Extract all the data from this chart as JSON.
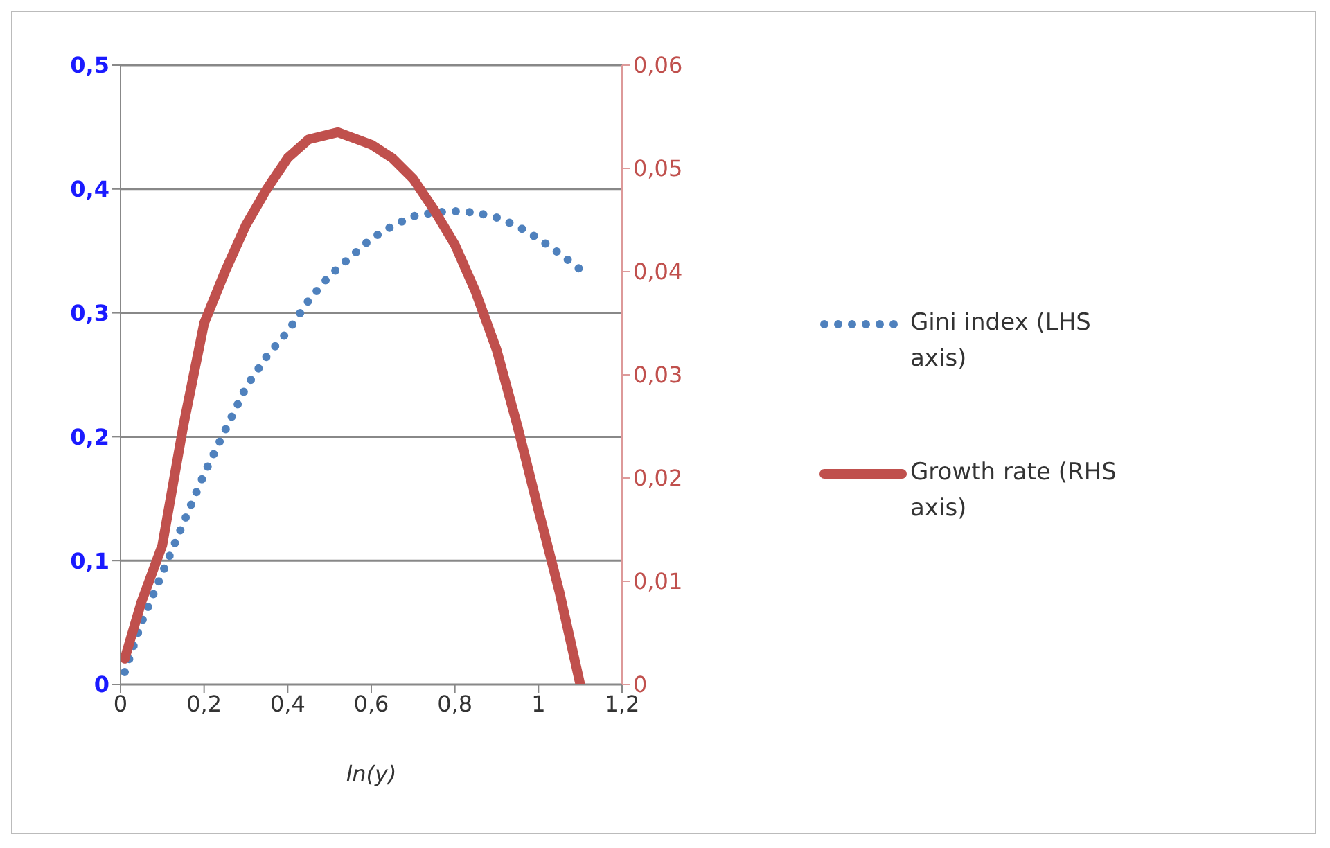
{
  "chart_data": {
    "type": "line",
    "xlabel": "ln(y)",
    "xlim": [
      0,
      1.2
    ],
    "xticks": [
      0,
      {
        "value": 0.2,
        "label": "0,2"
      },
      {
        "value": 0.4,
        "label": "0,4"
      },
      {
        "value": 0.6,
        "label": "0,6"
      },
      {
        "value": 0.8,
        "label": "0,8"
      },
      1,
      {
        "value": 1.2,
        "label": "1,2"
      }
    ],
    "ylim": [
      0,
      0.5
    ],
    "yticks": [
      0,
      {
        "value": 0.1,
        "label": "0,1"
      },
      {
        "value": 0.2,
        "label": "0,2"
      },
      {
        "value": 0.3,
        "label": "0,3"
      },
      {
        "value": 0.4,
        "label": "0,4"
      },
      {
        "value": 0.5,
        "label": "0,5"
      }
    ],
    "y2lim": [
      0,
      0.06
    ],
    "y2ticks": [
      0,
      {
        "value": 0.01,
        "label": "0,01"
      },
      {
        "value": 0.02,
        "label": "0,02"
      },
      {
        "value": 0.03,
        "label": "0,03"
      },
      {
        "value": 0.04,
        "label": "0,04"
      },
      {
        "value": 0.05,
        "label": "0,05"
      },
      {
        "value": 0.06,
        "label": "0,06"
      }
    ],
    "grid": "y",
    "legend": "right",
    "series": [
      {
        "name": "Gini index (LHS axis)",
        "color": "#4f81bd",
        "line_style": "dotted",
        "x": [
          0.01,
          0.05,
          0.1,
          0.15,
          0.2,
          0.25,
          0.3,
          0.35,
          0.4,
          0.45,
          0.5,
          0.55,
          0.6,
          0.65,
          0.7,
          0.75,
          0.8,
          0.85,
          0.9,
          0.95,
          1.0,
          1.05,
          1.1
        ],
        "values": [
          0.01,
          0.05,
          0.09,
          0.13,
          0.17,
          0.205,
          0.24,
          0.265,
          0.285,
          0.31,
          0.33,
          0.345,
          0.36,
          0.37,
          0.378,
          0.381,
          0.382,
          0.381,
          0.377,
          0.37,
          0.36,
          0.348,
          0.335
        ]
      },
      {
        "name": "Growth rate (RHS axis)",
        "color": "#c0504d",
        "line_style": "solid",
        "axis": "y2",
        "x": [
          0.01,
          0.05,
          0.1,
          0.15,
          0.2,
          0.25,
          0.3,
          0.35,
          0.4,
          0.45,
          0.52,
          0.6,
          0.65,
          0.7,
          0.75,
          0.8,
          0.85,
          0.9,
          0.95,
          1.0,
          1.05,
          1.1
        ],
        "values": [
          0.0025,
          0.008,
          0.0135,
          0.025,
          0.035,
          0.04,
          0.0445,
          0.048,
          0.051,
          0.0528,
          0.0535,
          0.0523,
          0.051,
          0.049,
          0.046,
          0.0426,
          0.038,
          0.0324,
          0.025,
          0.0169,
          0.009,
          0
        ]
      }
    ]
  }
}
